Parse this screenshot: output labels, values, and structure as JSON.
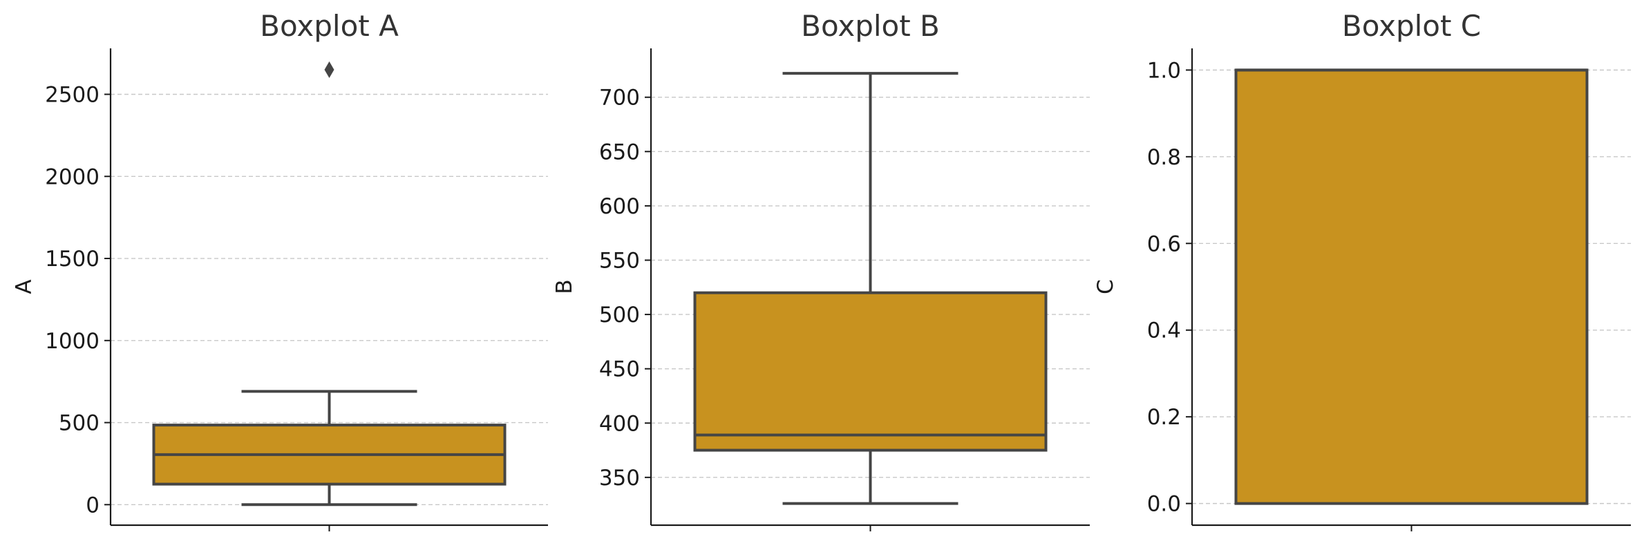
{
  "chart_data": [
    {
      "type": "box",
      "title": "Boxplot A",
      "xlabel": "",
      "ylabel": "A",
      "ylim": [
        -125,
        2780
      ],
      "yticks": [
        0,
        500,
        1000,
        1500,
        2000,
        2500
      ],
      "ytick_labels": [
        "0",
        "500",
        "1000",
        "1500",
        "2000",
        "2500"
      ],
      "grid": true,
      "box": {
        "whisker_low": 0,
        "q1": 125,
        "median": 305,
        "q3": 485,
        "whisker_high": 690,
        "outliers": [
          2650
        ]
      },
      "color": "#c8921f"
    },
    {
      "type": "box",
      "title": "Boxplot B",
      "xlabel": "",
      "ylabel": "B",
      "ylim": [
        306,
        745
      ],
      "yticks": [
        350,
        400,
        450,
        500,
        550,
        600,
        650,
        700
      ],
      "ytick_labels": [
        "350",
        "400",
        "450",
        "500",
        "550",
        "600",
        "650",
        "700"
      ],
      "grid": true,
      "box": {
        "whisker_low": 326,
        "q1": 375,
        "median": 389,
        "q3": 520,
        "whisker_high": 722,
        "outliers": []
      },
      "color": "#c8921f"
    },
    {
      "type": "box",
      "title": "Boxplot C",
      "xlabel": "",
      "ylabel": "C",
      "ylim": [
        -0.05,
        1.05
      ],
      "yticks": [
        0.0,
        0.2,
        0.4,
        0.6,
        0.8,
        1.0
      ],
      "ytick_labels": [
        "0.0",
        "0.2",
        "0.4",
        "0.6",
        "0.8",
        "1.0"
      ],
      "grid": true,
      "box": {
        "whisker_low": 0,
        "q1": 0,
        "median": 1,
        "q3": 1,
        "whisker_high": 1,
        "outliers": []
      },
      "color": "#c8921f"
    }
  ]
}
